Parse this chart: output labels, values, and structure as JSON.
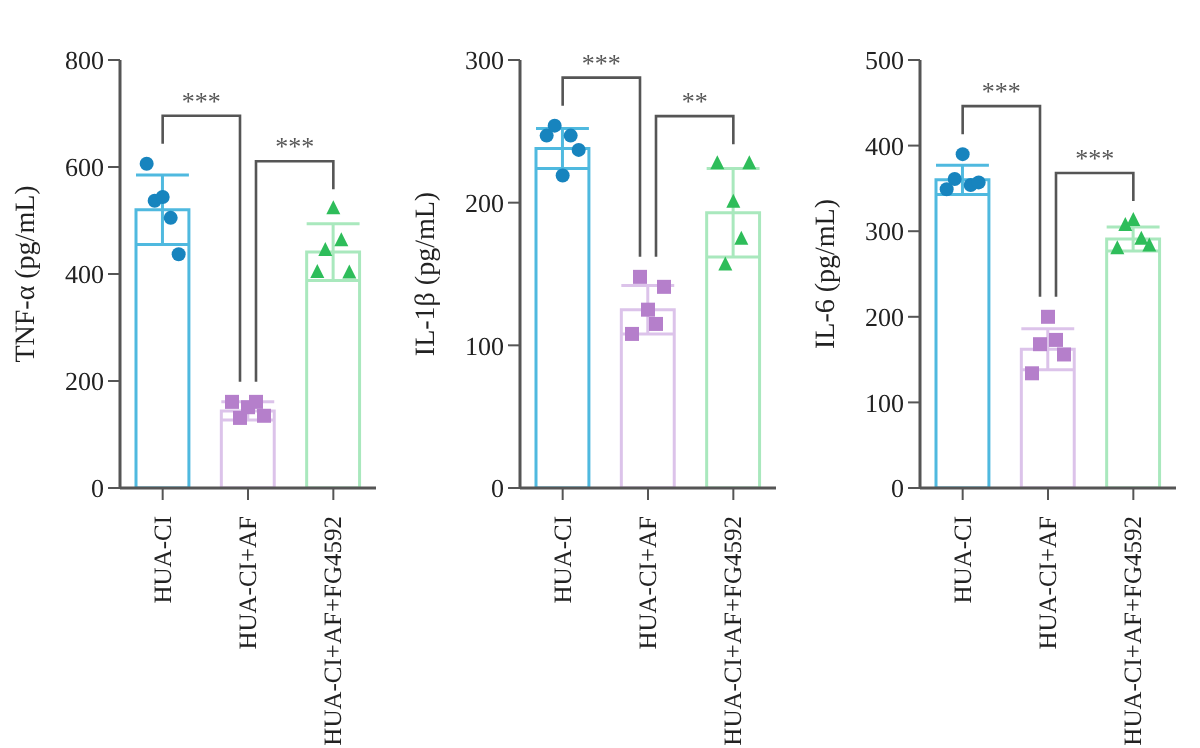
{
  "chart_data": [
    {
      "type": "bar",
      "ylabel": "TNF-α (pg/mL)",
      "categories": [
        "HUA-CI",
        "HUA-CI+AF",
        "HUA-CI+AF+FG4592"
      ],
      "ylim": [
        0,
        800
      ],
      "yticks": [
        0,
        200,
        400,
        600,
        800
      ],
      "annotations": [
        "***",
        "***"
      ],
      "series": [
        {
          "type": "bar",
          "colors": [
            "#4fb9df",
            "#dcc3ea",
            "#a9e8bd"
          ],
          "values": [
            520,
            144,
            441
          ],
          "errors": [
            65,
            17,
            53
          ]
        },
        {
          "type": "scatter",
          "marker": "circle",
          "color": "#1784be",
          "x": [
            "HUA-CI",
            "HUA-CI",
            "HUA-CI",
            "HUA-CI",
            "HUA-CI"
          ],
          "values": [
            606,
            537,
            544,
            505,
            437
          ]
        },
        {
          "type": "scatter",
          "marker": "square",
          "color": "#b57fcb",
          "x": [
            "HUA-CI+AF",
            "HUA-CI+AF",
            "HUA-CI+AF",
            "HUA-CI+AF",
            "HUA-CI+AF"
          ],
          "values": [
            161,
            131,
            151,
            161,
            135
          ]
        },
        {
          "type": "scatter",
          "marker": "triangle",
          "color": "#2ebd5a",
          "x": [
            "HUA-CI+AF+FG4592",
            "HUA-CI+AF+FG4592",
            "HUA-CI+AF+FG4592",
            "HUA-CI+AF+FG4592",
            "HUA-CI+AF+FG4592"
          ],
          "values": [
            402,
            443,
            521,
            461,
            401
          ]
        }
      ]
    },
    {
      "type": "bar",
      "ylabel": "IL-1β (pg/mL)",
      "categories": [
        "HUA-CI",
        "HUA-CI+AF",
        "HUA-CI+AF+FG4592"
      ],
      "ylim": [
        0,
        300
      ],
      "yticks": [
        0,
        100,
        200,
        300
      ],
      "annotations": [
        "***",
        "**"
      ],
      "series": [
        {
          "type": "bar",
          "colors": [
            "#4fb9df",
            "#dcc3ea",
            "#a9e8bd"
          ],
          "values": [
            238,
            125,
            193
          ],
          "errors": [
            14,
            17,
            31
          ]
        },
        {
          "type": "scatter",
          "marker": "circle",
          "color": "#1784be",
          "x": [
            "HUA-CI",
            "HUA-CI",
            "HUA-CI",
            "HUA-CI",
            "HUA-CI"
          ],
          "values": [
            247,
            254,
            219,
            247,
            237
          ]
        },
        {
          "type": "scatter",
          "marker": "square",
          "color": "#b57fcb",
          "x": [
            "HUA-CI+AF",
            "HUA-CI+AF",
            "HUA-CI+AF",
            "HUA-CI+AF",
            "HUA-CI+AF"
          ],
          "values": [
            108,
            148,
            125,
            115,
            141
          ]
        },
        {
          "type": "scatter",
          "marker": "triangle",
          "color": "#2ebd5a",
          "x": [
            "HUA-CI+AF+FG4592",
            "HUA-CI+AF+FG4592",
            "HUA-CI+AF+FG4592",
            "HUA-CI+AF+FG4592",
            "HUA-CI+AF+FG4592"
          ],
          "values": [
            227,
            156,
            200,
            174,
            227
          ]
        }
      ]
    },
    {
      "type": "bar",
      "ylabel": "IL-6 (pg/mL)",
      "categories": [
        "HUA-CI",
        "HUA-CI+AF",
        "HUA-CI+AF+FG4592"
      ],
      "ylim": [
        0,
        500
      ],
      "yticks": [
        0,
        100,
        200,
        300,
        400,
        500
      ],
      "annotations": [
        "***",
        "***"
      ],
      "series": [
        {
          "type": "bar",
          "colors": [
            "#4fb9df",
            "#dcc3ea",
            "#a9e8bd"
          ],
          "values": [
            360,
            162,
            291
          ],
          "errors": [
            17,
            24,
            14
          ]
        },
        {
          "type": "scatter",
          "marker": "circle",
          "color": "#1784be",
          "x": [
            "HUA-CI",
            "HUA-CI",
            "HUA-CI",
            "HUA-CI",
            "HUA-CI"
          ],
          "values": [
            349,
            361,
            390,
            354,
            357
          ]
        },
        {
          "type": "scatter",
          "marker": "square",
          "color": "#b57fcb",
          "x": [
            "HUA-CI+AF",
            "HUA-CI+AF",
            "HUA-CI+AF",
            "HUA-CI+AF",
            "HUA-CI+AF"
          ],
          "values": [
            134,
            168,
            200,
            173,
            156
          ]
        },
        {
          "type": "scatter",
          "marker": "triangle",
          "color": "#2ebd5a",
          "x": [
            "HUA-CI+AF+FG4592",
            "HUA-CI+AF+FG4592",
            "HUA-CI+AF+FG4592",
            "HUA-CI+AF+FG4592",
            "HUA-CI+AF+FG4592"
          ],
          "values": [
            279,
            306,
            312,
            290,
            282
          ]
        }
      ]
    }
  ]
}
